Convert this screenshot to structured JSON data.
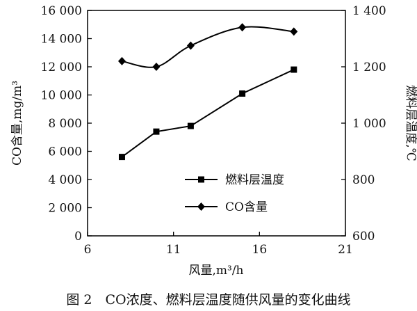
{
  "chart_data": {
    "type": "line",
    "x": [
      8,
      10,
      12,
      15,
      18
    ],
    "series": [
      {
        "name": "燃料层温度",
        "axis": "right",
        "marker": "square",
        "color": "#000000",
        "values": [
          880,
          970,
          990,
          1105,
          1190
        ]
      },
      {
        "name": "CO含量",
        "axis": "left",
        "marker": "diamond",
        "color": "#000000",
        "values": [
          12400,
          12000,
          13500,
          14800,
          14500
        ],
        "smooth": true
      }
    ],
    "xlabel": "风量,m³/h",
    "ylabel_left": "CO含量,mg/m³",
    "ylabel_right": "燃料层温度,℃",
    "xlim": [
      6,
      21
    ],
    "ylim_left": [
      0,
      16000
    ],
    "ylim_right": [
      600,
      1400
    ],
    "x_ticks": [
      6,
      11,
      16,
      21
    ],
    "x_tick_labels": [
      "6",
      "11",
      "16",
      "21"
    ],
    "y_left_ticks": [
      0,
      2000,
      4000,
      6000,
      8000,
      10000,
      12000,
      14000,
      16000
    ],
    "y_left_tick_labels": [
      "0",
      "2 000",
      "4 000",
      "6 000",
      "8 000",
      "10 000",
      "12 000",
      "14 000",
      "16 000"
    ],
    "y_right_ticks": [
      600,
      800,
      1000,
      1200,
      1400
    ],
    "y_right_tick_labels": [
      "600",
      "800",
      "1 000",
      "1 200",
      "1 400"
    ],
    "grid": false,
    "legend_position": "lower-center",
    "caption": "图 2　CO浓度、燃料层温度随供风量的变化曲线"
  }
}
